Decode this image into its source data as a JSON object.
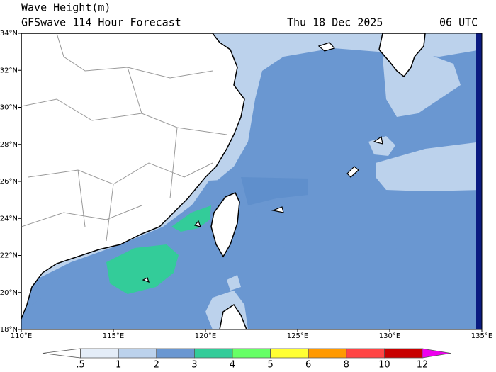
{
  "header": {
    "title": "Wave Height(m)",
    "subtitle": "GFSwave 114 Hour Forecast",
    "date": "Thu 18 Dec 2025",
    "time": "06 UTC"
  },
  "map": {
    "lon_labels": [
      "110°E",
      "115°E",
      "120°E",
      "125°E",
      "130°E",
      "135°E"
    ],
    "lat_labels": [
      "18°N",
      "20°N",
      "22°N",
      "24°N",
      "26°N",
      "28°N",
      "30°N",
      "32°N",
      "34°N"
    ]
  },
  "colorbar": {
    "labels": [
      ".5",
      "1",
      "2",
      "3",
      "4",
      "5",
      "6",
      "8",
      "10",
      "12"
    ],
    "colors": [
      "#ffffff",
      "#e4edf8",
      "#bcd2ec",
      "#6a97d1",
      "#33cc99",
      "#66ff66",
      "#ffff33",
      "#ff9900",
      "#ff4444",
      "#c80000",
      "#ee00ee"
    ]
  }
}
